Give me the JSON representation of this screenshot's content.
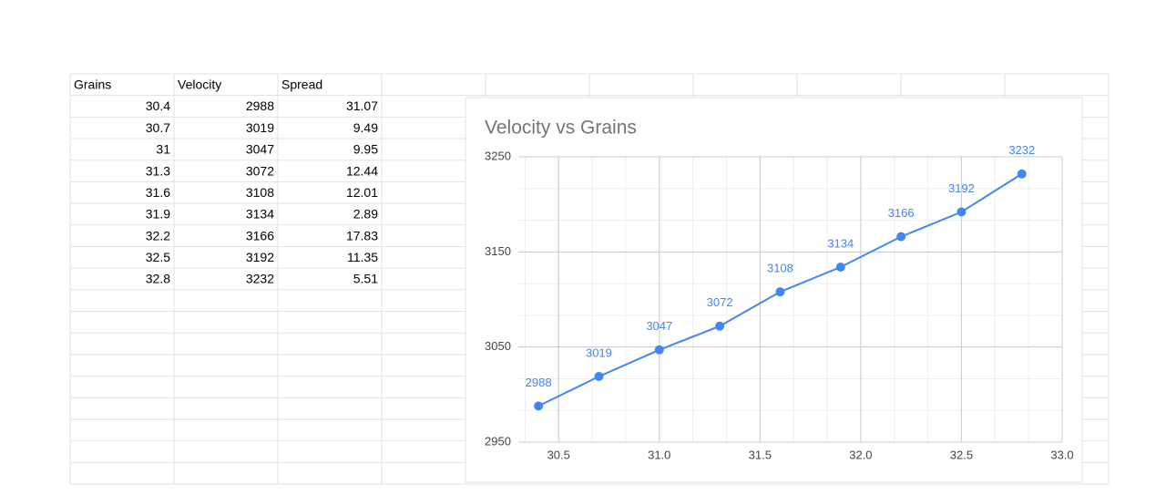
{
  "table": {
    "header": [
      "Grains",
      "Velocity",
      "Spread"
    ],
    "rows": [
      [
        30.4,
        2988,
        31.07
      ],
      [
        30.7,
        3019,
        9.49
      ],
      [
        31,
        3047,
        9.95
      ],
      [
        31.3,
        3072,
        12.44
      ],
      [
        31.6,
        3108,
        12.01
      ],
      [
        31.9,
        3134,
        2.89
      ],
      [
        32.2,
        3166,
        17.83
      ],
      [
        32.5,
        3192,
        11.35
      ],
      [
        32.8,
        3232,
        5.51
      ]
    ]
  },
  "chart_data": {
    "type": "line",
    "title": "Velocity vs Grains",
    "x": [
      30.4,
      30.7,
      31.0,
      31.3,
      31.6,
      31.9,
      32.2,
      32.5,
      32.8
    ],
    "values": [
      2988,
      3019,
      3047,
      3072,
      3108,
      3134,
      3166,
      3192,
      3232
    ],
    "color": "#4285f4",
    "data_labels": true,
    "xlim": [
      30.3,
      33.0
    ],
    "xticks": [
      30.5,
      {
        "value": 31,
        "label": "31.0"
      },
      31.5,
      {
        "value": 32,
        "label": "32.0"
      },
      32.5,
      {
        "value": 33,
        "label": "33.0"
      }
    ],
    "ylim": [
      2950,
      3250
    ],
    "yticks": [
      2950,
      3050,
      3150,
      3250
    ],
    "grid": true
  }
}
